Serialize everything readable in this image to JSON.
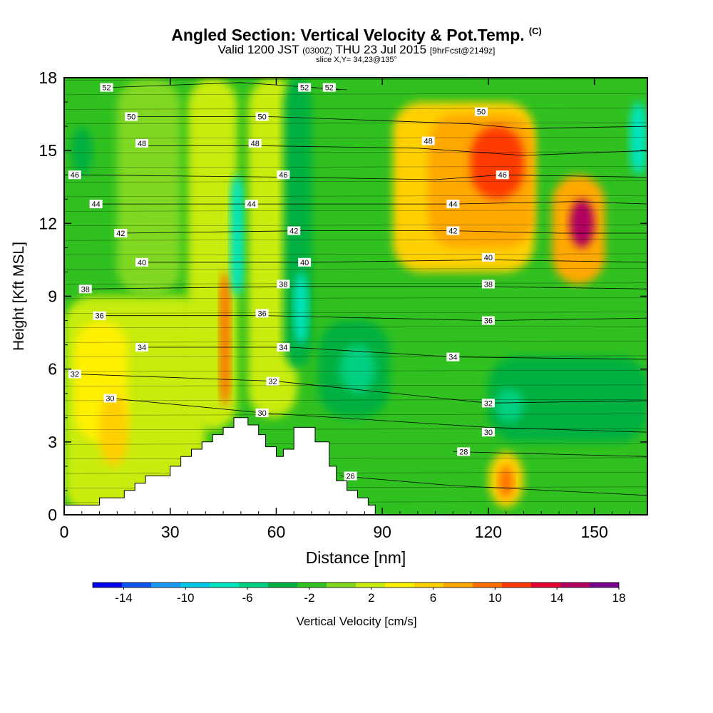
{
  "title": {
    "main": "Angled Section: Vertical Velocity & Pot.Temp.",
    "main_unit": "(C)",
    "valid_prefix": "Valid 1200 JST",
    "valid_small": "(0300Z)",
    "valid_date": "THU 23 Jul 2015",
    "valid_fcst": "[9hrFcst@2149z]",
    "slice": "slice X,Y= 34,23@135°"
  },
  "chart_data": {
    "type": "heatmap",
    "xlabel": "Distance [nm]",
    "ylabel": "Height [Kft MSL]",
    "xlim": [
      0,
      165
    ],
    "ylim": [
      0,
      18
    ],
    "x_ticks": [
      0,
      30,
      60,
      90,
      120,
      150
    ],
    "y_ticks": [
      0,
      3,
      6,
      9,
      12,
      15,
      18
    ],
    "terrain": [
      [
        0,
        0.4
      ],
      [
        10,
        0.4
      ],
      [
        10,
        0.7
      ],
      [
        17,
        0.7
      ],
      [
        17,
        1.0
      ],
      [
        20,
        1.0
      ],
      [
        20,
        1.3
      ],
      [
        23,
        1.3
      ],
      [
        23,
        1.6
      ],
      [
        30,
        1.6
      ],
      [
        30,
        2.0
      ],
      [
        33,
        2.0
      ],
      [
        33,
        2.4
      ],
      [
        36,
        2.4
      ],
      [
        36,
        2.7
      ],
      [
        39,
        2.7
      ],
      [
        39,
        3.0
      ],
      [
        42,
        3.0
      ],
      [
        42,
        3.3
      ],
      [
        45,
        3.3
      ],
      [
        45,
        3.6
      ],
      [
        48,
        3.6
      ],
      [
        48,
        4.0
      ],
      [
        52,
        4.0
      ],
      [
        52,
        3.7
      ],
      [
        55,
        3.7
      ],
      [
        55,
        3.3
      ],
      [
        57,
        3.3
      ],
      [
        57,
        2.8
      ],
      [
        60,
        2.8
      ],
      [
        60,
        2.4
      ],
      [
        62,
        2.4
      ],
      [
        62,
        2.7
      ],
      [
        65,
        2.7
      ],
      [
        65,
        3.6
      ],
      [
        71,
        3.6
      ],
      [
        71,
        3.0
      ],
      [
        75,
        3.0
      ],
      [
        75,
        2.0
      ],
      [
        77,
        2.0
      ],
      [
        77,
        1.4
      ],
      [
        80,
        1.4
      ],
      [
        80,
        1.0
      ],
      [
        83,
        1.0
      ],
      [
        83,
        0.7
      ],
      [
        86,
        0.7
      ],
      [
        86,
        0.4
      ],
      [
        88,
        0.4
      ],
      [
        88,
        0.0
      ]
    ],
    "theta_contours": [
      {
        "label": "52",
        "points": [
          [
            13,
            17.6
          ],
          [
            50,
            17.8
          ],
          [
            70,
            17.6
          ],
          [
            80,
            17.5
          ]
        ]
      },
      {
        "label": "52",
        "points": [
          [
            70,
            17.6
          ],
          [
            78,
            17.5
          ]
        ]
      },
      {
        "label": "50",
        "points": [
          [
            19,
            16.4
          ],
          [
            58,
            16.4
          ],
          [
            115,
            16.1
          ],
          [
            130,
            15.9
          ],
          [
            165,
            16.0
          ]
        ]
      },
      {
        "label": "48",
        "points": [
          [
            23,
            15.2
          ],
          [
            55,
            15.2
          ],
          [
            100,
            15.1
          ],
          [
            130,
            14.8
          ],
          [
            165,
            15.0
          ]
        ]
      },
      {
        "label": "46",
        "points": [
          [
            3,
            14.0
          ],
          [
            65,
            13.9
          ],
          [
            105,
            13.8
          ],
          [
            124,
            14.0
          ],
          [
            165,
            13.9
          ]
        ]
      },
      {
        "label": "44",
        "points": [
          [
            9,
            12.8
          ],
          [
            55,
            12.8
          ],
          [
            110,
            12.8
          ],
          [
            145,
            12.9
          ],
          [
            165,
            12.8
          ]
        ]
      },
      {
        "label": "42",
        "points": [
          [
            16,
            11.6
          ],
          [
            68,
            11.7
          ],
          [
            110,
            11.7
          ],
          [
            140,
            11.6
          ],
          [
            165,
            11.6
          ]
        ]
      },
      {
        "label": "40",
        "points": [
          [
            22,
            10.4
          ],
          [
            71,
            10.4
          ],
          [
            120,
            10.5
          ],
          [
            165,
            10.4
          ]
        ]
      },
      {
        "label": "38",
        "points": [
          [
            6,
            9.3
          ],
          [
            64,
            9.4
          ],
          [
            120,
            9.4
          ],
          [
            165,
            9.3
          ]
        ]
      },
      {
        "label": "36",
        "points": [
          [
            10,
            8.2
          ],
          [
            57,
            8.2
          ],
          [
            120,
            8.0
          ],
          [
            165,
            8.1
          ]
        ]
      },
      {
        "label": "34",
        "points": [
          [
            23,
            6.9
          ],
          [
            64,
            6.9
          ],
          [
            110,
            6.5
          ],
          [
            165,
            6.4
          ]
        ]
      },
      {
        "label": "32",
        "points": [
          [
            3,
            5.8
          ],
          [
            60,
            5.5
          ],
          [
            120,
            4.6
          ],
          [
            165,
            4.7
          ]
        ]
      },
      {
        "label": "30",
        "points": [
          [
            13,
            4.8
          ],
          [
            56,
            4.2
          ],
          [
            120,
            3.6
          ],
          [
            165,
            3.4
          ]
        ]
      },
      {
        "label": "28",
        "points": [
          [
            110,
            2.6
          ],
          [
            165,
            2.4
          ]
        ]
      },
      {
        "label": "26",
        "points": [
          [
            78,
            1.6
          ],
          [
            110,
            1.2
          ],
          [
            165,
            0.8
          ]
        ]
      }
    ],
    "theta_label_positions": [
      {
        "label": "52",
        "x": 12,
        "y": 17.6
      },
      {
        "label": "52",
        "x": 68,
        "y": 17.6
      },
      {
        "label": "52",
        "x": 75,
        "y": 17.6
      },
      {
        "label": "50",
        "x": 19,
        "y": 16.4
      },
      {
        "label": "50",
        "x": 56,
        "y": 16.4
      },
      {
        "label": "50",
        "x": 118,
        "y": 16.6
      },
      {
        "label": "48",
        "x": 22,
        "y": 15.3
      },
      {
        "label": "48",
        "x": 54,
        "y": 15.3
      },
      {
        "label": "48",
        "x": 103,
        "y": 15.4
      },
      {
        "label": "46",
        "x": 3,
        "y": 14.0
      },
      {
        "label": "46",
        "x": 62,
        "y": 14.0
      },
      {
        "label": "46",
        "x": 124,
        "y": 14.0
      },
      {
        "label": "44",
        "x": 9,
        "y": 12.8
      },
      {
        "label": "44",
        "x": 53,
        "y": 12.8
      },
      {
        "label": "44",
        "x": 110,
        "y": 12.8
      },
      {
        "label": "42",
        "x": 16,
        "y": 11.6
      },
      {
        "label": "42",
        "x": 65,
        "y": 11.7
      },
      {
        "label": "42",
        "x": 110,
        "y": 11.7
      },
      {
        "label": "40",
        "x": 22,
        "y": 10.4
      },
      {
        "label": "40",
        "x": 68,
        "y": 10.4
      },
      {
        "label": "40",
        "x": 120,
        "y": 10.6
      },
      {
        "label": "38",
        "x": 6,
        "y": 9.3
      },
      {
        "label": "38",
        "x": 62,
        "y": 9.5
      },
      {
        "label": "38",
        "x": 120,
        "y": 9.5
      },
      {
        "label": "36",
        "x": 10,
        "y": 8.2
      },
      {
        "label": "36",
        "x": 56,
        "y": 8.3
      },
      {
        "label": "36",
        "x": 120,
        "y": 8.0
      },
      {
        "label": "34",
        "x": 22,
        "y": 6.9
      },
      {
        "label": "34",
        "x": 62,
        "y": 6.9
      },
      {
        "label": "34",
        "x": 110,
        "y": 6.5
      },
      {
        "label": "32",
        "x": 3,
        "y": 5.8
      },
      {
        "label": "32",
        "x": 59,
        "y": 5.5
      },
      {
        "label": "32",
        "x": 120,
        "y": 4.6
      },
      {
        "label": "30",
        "x": 13,
        "y": 4.8
      },
      {
        "label": "30",
        "x": 56,
        "y": 4.2
      },
      {
        "label": "30",
        "x": 120,
        "y": 3.4
      },
      {
        "label": "28",
        "x": 113,
        "y": 2.6
      },
      {
        "label": "26",
        "x": 81,
        "y": 1.6
      }
    ],
    "velocity_features": [
      {
        "x": 0,
        "w": 165,
        "y0": 0,
        "y1": 18,
        "v": -1
      },
      {
        "x": 0,
        "w": 40,
        "y0": 0,
        "y1": 9,
        "v": 2
      },
      {
        "x": 3,
        "w": 15,
        "y0": 3,
        "y1": 8,
        "v": 4
      },
      {
        "x": 10,
        "w": 8,
        "y0": 2,
        "y1": 5,
        "v": 6
      },
      {
        "x": 15,
        "w": 18,
        "y0": 9,
        "y1": 18,
        "v": 1
      },
      {
        "x": 35,
        "w": 14,
        "y0": 3.5,
        "y1": 18,
        "v": 2
      },
      {
        "x": 44,
        "w": 3,
        "y0": 4.5,
        "y1": 10,
        "v": 10
      },
      {
        "x": 47,
        "w": 4,
        "y0": 9,
        "y1": 14,
        "v": -8
      },
      {
        "x": 52,
        "w": 14,
        "y0": 4,
        "y1": 18,
        "v": 3
      },
      {
        "x": 62,
        "w": 8,
        "y0": 6,
        "y1": 18,
        "v": -3
      },
      {
        "x": 65,
        "w": 4,
        "y0": 7,
        "y1": 10,
        "v": -7
      },
      {
        "x": 72,
        "w": 20,
        "y0": 4,
        "y1": 8,
        "v": -3
      },
      {
        "x": 78,
        "w": 10,
        "y0": 5,
        "y1": 7,
        "v": -6
      },
      {
        "x": 93,
        "w": 40,
        "y0": 10,
        "y1": 17,
        "v": 6
      },
      {
        "x": 103,
        "w": 30,
        "y0": 11,
        "y1": 16.5,
        "v": 8
      },
      {
        "x": 115,
        "w": 15,
        "y0": 13,
        "y1": 16,
        "v": 12
      },
      {
        "x": 138,
        "w": 15,
        "y0": 9.5,
        "y1": 14,
        "v": 8
      },
      {
        "x": 143,
        "w": 7,
        "y0": 11,
        "y1": 13,
        "v": 16
      },
      {
        "x": 120,
        "w": 10,
        "y0": 0.3,
        "y1": 2.6,
        "v": 6
      },
      {
        "x": 123,
        "w": 4,
        "y0": 0.7,
        "y1": 2.0,
        "v": 10
      },
      {
        "x": 120,
        "w": 45,
        "y0": 3,
        "y1": 6.5,
        "v": -3
      },
      {
        "x": 122,
        "w": 8,
        "y0": 3.8,
        "y1": 5.2,
        "v": -6
      },
      {
        "x": 160,
        "w": 5,
        "y0": 14,
        "y1": 17,
        "v": -7
      },
      {
        "x": 2,
        "w": 6,
        "y0": 14,
        "y1": 16,
        "v": -4
      }
    ],
    "colorbar": {
      "label": "Vertical Velocity [cm/s]",
      "tick_labels": [
        "-14",
        "-10",
        "-6",
        "-2",
        "2",
        "6",
        "10",
        "14",
        "18"
      ],
      "bins": [
        -16,
        -14,
        -12,
        -10,
        -8,
        -6,
        -4,
        -2,
        0,
        2,
        4,
        6,
        8,
        10,
        12,
        14,
        16,
        18
      ],
      "colors": [
        "#0000ee",
        "#0b55f2",
        "#1a9af4",
        "#00c8e8",
        "#00e5c0",
        "#00d080",
        "#00b040",
        "#30c020",
        "#80d820",
        "#c8ec10",
        "#fff000",
        "#ffd000",
        "#ffa800",
        "#ff7000",
        "#ff3a00",
        "#e40030",
        "#b00060",
        "#780090"
      ]
    }
  }
}
